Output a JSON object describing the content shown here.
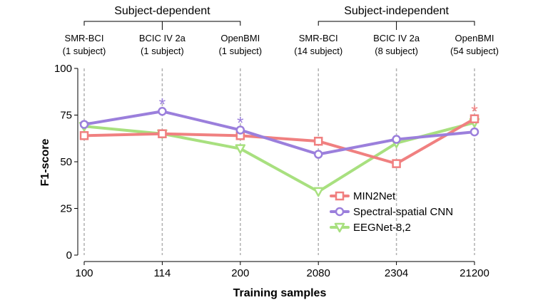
{
  "chart_data": {
    "type": "line",
    "xlabel": "Training samples",
    "ylabel": "F1-score",
    "ylim": [
      0,
      100
    ],
    "yticks": [
      0,
      25,
      50,
      75,
      100
    ],
    "grid": "vertical dashed at each category",
    "legend_position": "bottom-right",
    "categories": [
      "100",
      "114",
      "200",
      "2080",
      "2304",
      "21200"
    ],
    "groups": [
      {
        "label": "Subject-dependent",
        "span": [
          0,
          2
        ]
      },
      {
        "label": "Subject-independent",
        "span": [
          3,
          5
        ]
      }
    ],
    "datasets": [
      {
        "name": "SMR-BCI",
        "subjects": "(1 subject)"
      },
      {
        "name": "BCIC IV 2a",
        "subjects": "(1 subject)"
      },
      {
        "name": "OpenBMI",
        "subjects": "(1 subject)"
      },
      {
        "name": "SMR-BCI",
        "subjects": "(14 subject)"
      },
      {
        "name": "BCIC IV 2a",
        "subjects": "(8 subject)"
      },
      {
        "name": "OpenBMI",
        "subjects": "(54 subject)"
      }
    ],
    "series": [
      {
        "name": "MIN2Net",
        "color": "#f08080",
        "marker": "square",
        "values": [
          64,
          65,
          64,
          61,
          49,
          73
        ]
      },
      {
        "name": "Spectral-spatial CNN",
        "color": "#9b7fdc",
        "marker": "circle",
        "values": [
          70,
          77,
          67,
          54,
          62,
          66
        ]
      },
      {
        "name": "EEGNet-8,2",
        "color": "#a8e07f",
        "marker": "triangle",
        "values": [
          69,
          65,
          57,
          34,
          60,
          71
        ]
      }
    ],
    "annotations": [
      {
        "text": "*",
        "category_index": 1,
        "color": "#9b7fdc",
        "above_value": 77
      },
      {
        "text": "*",
        "category_index": 2,
        "color": "#9b7fdc",
        "above_value": 67
      },
      {
        "text": "*",
        "category_index": 5,
        "color": "#f08080",
        "above_value": 73
      }
    ]
  }
}
